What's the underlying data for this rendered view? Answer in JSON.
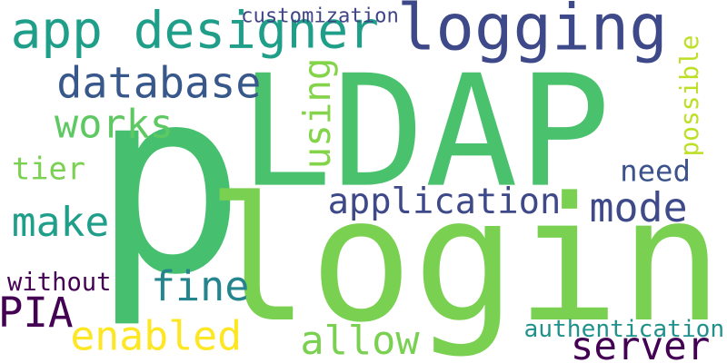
{
  "words": [
    {
      "key": "p",
      "text": "p",
      "color": "#46c06f"
    },
    {
      "key": "login",
      "text": "login",
      "color": "#7ad151"
    },
    {
      "key": "ldap",
      "text": "LDAP",
      "color": "#4ac16d"
    },
    {
      "key": "logging",
      "text": "logging",
      "color": "#3e4989"
    },
    {
      "key": "app_designer",
      "text": "app designer",
      "color": "#1f9e89"
    },
    {
      "key": "database",
      "text": "database",
      "color": "#38588c"
    },
    {
      "key": "works",
      "text": "works",
      "color": "#5ec962"
    },
    {
      "key": "using",
      "text": "using",
      "color": "#84d44b"
    },
    {
      "key": "possible",
      "text": "possible",
      "color": "#bddf26"
    },
    {
      "key": "need",
      "text": "need",
      "color": "#3b528b"
    },
    {
      "key": "tier",
      "text": "tier",
      "color": "#7ad151"
    },
    {
      "key": "application",
      "text": "application",
      "color": "#3e4989"
    },
    {
      "key": "mode",
      "text": "mode",
      "color": "#3e4a89"
    },
    {
      "key": "make",
      "text": "make",
      "color": "#1f9e89"
    },
    {
      "key": "fine",
      "text": "fine",
      "color": "#25858e"
    },
    {
      "key": "without",
      "text": "without",
      "color": "#440154"
    },
    {
      "key": "pia",
      "text": "PIA",
      "color": "#440154"
    },
    {
      "key": "enabled",
      "text": "enabled",
      "color": "#fde725"
    },
    {
      "key": "allow",
      "text": "allow",
      "color": "#7ad151"
    },
    {
      "key": "authentication",
      "text": "authentication",
      "color": "#21918c"
    },
    {
      "key": "server",
      "text": "server",
      "color": "#440154"
    },
    {
      "key": "customization",
      "text": "customization",
      "color": "#414487"
    }
  ]
}
